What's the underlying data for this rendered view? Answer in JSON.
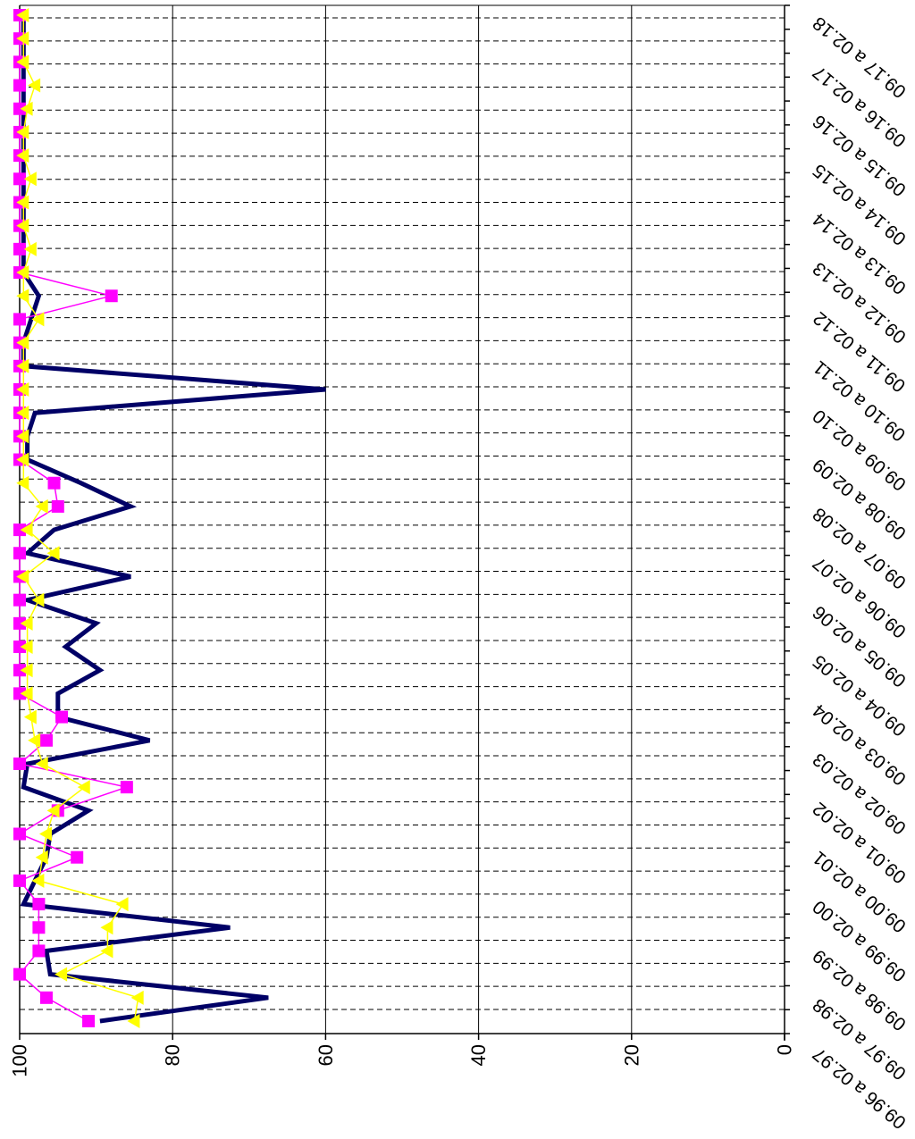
{
  "chart_data": {
    "type": "line",
    "orientation": "rotated-90-clockwise",
    "value_axis": {
      "min": 0,
      "max": 100,
      "ticks": [
        "0",
        "20",
        "40",
        "60",
        "80",
        "100"
      ],
      "reversed": true
    },
    "category_labels": [
      "09.96 a 02.97",
      "09.97 a 02.98",
      "09.98 a 02.99",
      "09.99 a 02.00",
      "09.00 a 02.01",
      "09.01 a 02.02",
      "09.02 a 02.03",
      "09.03 a 02.04",
      "09.04 a 02.05",
      "09.05 a 02.06",
      "09.06 a 02.07",
      "09.07 a 02.08",
      "09.08 a 02.09",
      "09.09 a 02.10",
      "09.10 a 02.11",
      "09.11 a 02.12",
      "09.12 a 02.13",
      "09.13 a 02.14",
      "09.14 a 02.15",
      "09.15 a 02.16",
      "09.16 a 02.17",
      "09.17 a 02.18"
    ],
    "grid": {
      "major_value_lines": true,
      "category_dashed_lines": true
    },
    "series": [
      {
        "color": "#000066",
        "marker": "none",
        "values": [
          89.5,
          67.5,
          96,
          96.5,
          72.5,
          99.5,
          98,
          96.5,
          96,
          91,
          99.5,
          99,
          83,
          95,
          95,
          89.5,
          94,
          90,
          99,
          85.5,
          99,
          95.5,
          85.5,
          92,
          99,
          99,
          98,
          60,
          99.5,
          99.5,
          98.5,
          97.5,
          99.5,
          99.5,
          99.5,
          99.5,
          99.5,
          99.5,
          99.5,
          99.5,
          99.5,
          99.5,
          99.5,
          99.5
        ]
      },
      {
        "color": "#ff00ff",
        "marker": "square",
        "values": [
          91,
          96.5,
          100,
          97.5,
          97.5,
          97.5,
          100,
          92.5,
          100,
          95,
          86,
          100,
          96.5,
          94.5,
          100,
          100,
          100,
          100,
          100,
          100,
          100,
          100,
          95,
          95.5,
          100,
          100,
          100,
          100,
          100,
          100,
          100,
          88,
          100,
          100,
          100,
          100,
          100,
          100,
          100,
          100,
          100,
          100,
          100,
          100
        ]
      },
      {
        "color": "#ffff00",
        "marker": "triangle",
        "values": [
          85,
          84.5,
          94.5,
          88.5,
          88.5,
          86.5,
          97.5,
          97,
          96.5,
          95.5,
          91.5,
          97,
          98,
          98.5,
          99,
          99,
          99,
          99,
          97.5,
          99.5,
          95.5,
          99,
          97,
          99.5,
          99.5,
          99.5,
          99.5,
          99.5,
          99.5,
          99.5,
          97.5,
          99.5,
          99.5,
          98.5,
          99.5,
          99.5,
          98.5,
          99.5,
          99.5,
          99,
          98,
          99.5,
          99.5,
          99.5
        ]
      }
    ]
  }
}
